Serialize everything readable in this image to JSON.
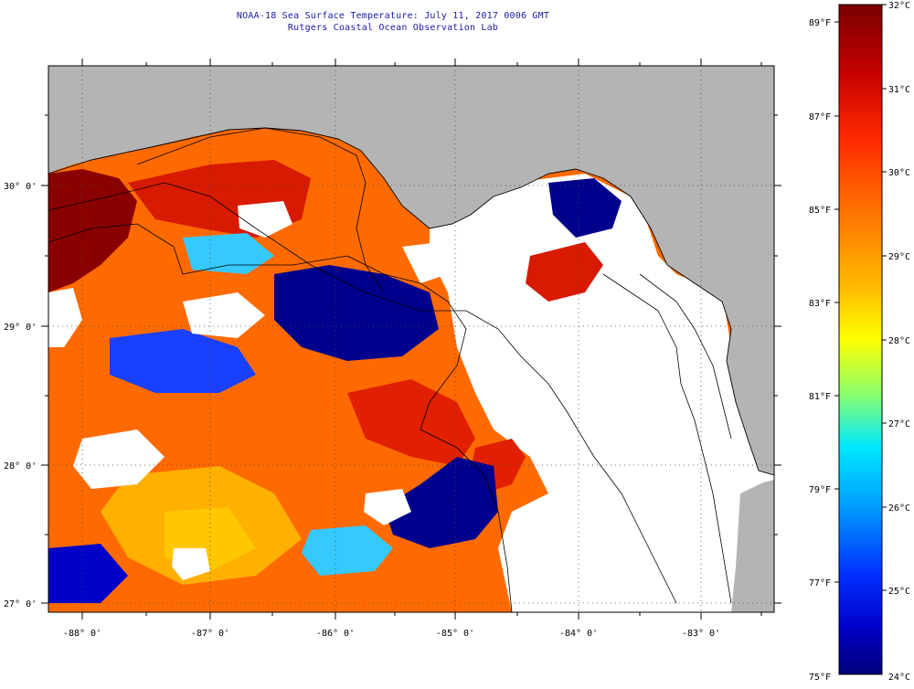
{
  "title": {
    "line1": "NOAA-18 Sea Surface Temperature:  July 11, 2017 0006 GMT",
    "line2": "Rutgers Coastal Ocean Observation Lab"
  },
  "map": {
    "latitude_labels": [
      "30° 0'",
      "29° 0'",
      "28° 0'",
      "27° 0'"
    ],
    "longitude_labels": [
      "-88° 0'",
      "-87° 0'",
      "-86° 0'",
      "-85° 0'",
      "-84° 0'",
      "-83° 0'"
    ]
  },
  "colorbar": {
    "fahrenheit_labels": [
      "89°F",
      "87°F",
      "85°F",
      "83°F",
      "81°F",
      "79°F",
      "77°F",
      "75°F"
    ],
    "celsius_labels": [
      "32°C",
      "31°C",
      "30°C",
      "29°C",
      "28°C",
      "27°C",
      "26°C",
      "25°C",
      "24°C"
    ],
    "colors": [
      "#7a0000",
      "#c40000",
      "#ff2a00",
      "#ff7a00",
      "#ffb800",
      "#ffff00",
      "#8cff6a",
      "#00e8ff",
      "#009cff",
      "#0030ff",
      "#0000c8",
      "#00007a"
    ]
  },
  "colors": {
    "land": "#b4b4b4",
    "cloud_no_data": "#ffffff",
    "title_text": "#1a1aa6"
  }
}
